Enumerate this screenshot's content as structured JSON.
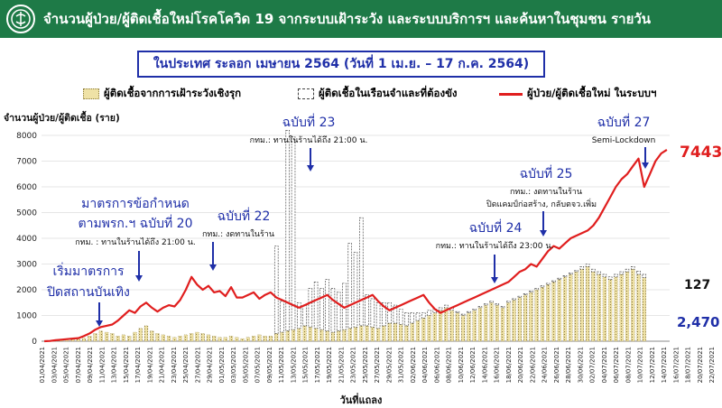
{
  "header": {
    "title": "จำนวนผู้ป่วย/ผู้ติดเชื้อใหม่โรคโควิด 19 จากระบบเฝ้าระวัง และระบบบริการฯ และค้นหาในชุมชน รายวัน"
  },
  "subtitle": "ในประเทศ ระลอก เมษายน 2564   (วันที่ 1 เม.ย. – 17 ก.ค. 2564)",
  "colors": {
    "header_bg": "#1e7a47",
    "line": "#e01e1e",
    "bar_active": "#efe2a6",
    "bar_prison": "#ffffff",
    "annotation": "#1f2fa8"
  },
  "chart_data": {
    "type": "bar",
    "title": "จำนวนผู้ป่วย/ผู้ติดเชื้อใหม่โรคโควิด 19 จากระบบเฝ้าระวัง และระบบบริการฯ และค้นหาในชุมชน รายวัน",
    "ylabel": "จำนวนผู้ป่วย/ผู้ติดเชื้อ (ราย)",
    "xlabel": "วันที่แถลง",
    "ylim": [
      0,
      8000
    ],
    "yticks": [
      0,
      1000,
      2000,
      3000,
      4000,
      5000,
      6000,
      7000,
      8000
    ],
    "x_tick_labels": [
      "01/04/2021",
      "03/04/2021",
      "05/04/2021",
      "07/04/2021",
      "09/04/2021",
      "11/04/2021",
      "13/04/2021",
      "15/04/2021",
      "17/04/2021",
      "19/04/2021",
      "21/04/2021",
      "23/04/2021",
      "25/04/2021",
      "27/04/2021",
      "29/04/2021",
      "01/05/2021",
      "03/05/2021",
      "05/05/2021",
      "07/05/2021",
      "09/05/2021",
      "11/05/2021",
      "13/05/2021",
      "15/05/2021",
      "17/05/2021",
      "19/05/2021",
      "21/05/2021",
      "23/05/2021",
      "25/05/2021",
      "27/05/2021",
      "29/05/2021",
      "31/05/2021",
      "02/06/2021",
      "04/06/2021",
      "06/06/2021",
      "08/06/2021",
      "10/06/2021",
      "12/06/2021",
      "14/06/2021",
      "16/06/2021",
      "18/06/2021",
      "20/06/2021",
      "22/06/2021",
      "24/06/2021",
      "26/06/2021",
      "28/06/2021",
      "30/06/2021",
      "02/07/2021",
      "04/07/2021",
      "06/07/2021",
      "08/07/2021",
      "10/07/2021",
      "12/07/2021",
      "14/07/2021",
      "16/07/2021",
      "18/07/2021",
      "20/07/2021",
      "22/07/2021"
    ],
    "series": [
      {
        "name": "ผู้ติดเชื้อจากการเฝ้าระวังเชิงรุก",
        "kind": "bar",
        "values": [
          0,
          10,
          20,
          30,
          40,
          60,
          80,
          120,
          200,
          300,
          400,
          350,
          300,
          200,
          250,
          200,
          350,
          500,
          600,
          400,
          300,
          250,
          200,
          150,
          200,
          250,
          300,
          350,
          300,
          250,
          200,
          150,
          150,
          200,
          150,
          100,
          150,
          200,
          250,
          200,
          200,
          300,
          350,
          400,
          450,
          500,
          600,
          550,
          500,
          450,
          400,
          350,
          400,
          450,
          500,
          550,
          600,
          600,
          550,
          500,
          600,
          700,
          700,
          650,
          600,
          700,
          800,
          900,
          1000,
          1100,
          1200,
          1300,
          1200,
          1100,
          1000,
          1100,
          1200,
          1300,
          1400,
          1500,
          1400,
          1300,
          1500,
          1600,
          1700,
          1800,
          1900,
          2000,
          2100,
          2200,
          2300,
          2400,
          2500,
          2600,
          2700,
          2800,
          2900,
          2700,
          2600,
          2500,
          2400,
          2500,
          2600,
          2700,
          2800,
          2600,
          2470
        ]
      },
      {
        "name": "ผู้ติดเชื้อในเรือนจำและที่ต้องขัง",
        "kind": "bar",
        "values": [
          0,
          0,
          0,
          0,
          0,
          0,
          0,
          0,
          0,
          0,
          0,
          0,
          0,
          0,
          0,
          0,
          0,
          0,
          0,
          0,
          0,
          0,
          0,
          0,
          0,
          0,
          0,
          0,
          0,
          0,
          0,
          0,
          0,
          0,
          0,
          0,
          0,
          0,
          0,
          0,
          0,
          3400,
          1200,
          7800,
          7500,
          1000,
          800,
          1500,
          1800,
          1600,
          2000,
          1700,
          1500,
          1800,
          3300,
          2900,
          4200,
          1200,
          1100,
          1000,
          900,
          800,
          700,
          600,
          500,
          400,
          300,
          200,
          200,
          150,
          100,
          100,
          100,
          50,
          50,
          50,
          50,
          50,
          50,
          50,
          50,
          50,
          50,
          50,
          50,
          50,
          50,
          50,
          50,
          50,
          50,
          50,
          50,
          50,
          50,
          100,
          100,
          100,
          100,
          100,
          100,
          100,
          100,
          100,
          100,
          127,
          127
        ]
      },
      {
        "name": "ผู้ป่วย/ผู้ติดเชื้อใหม่ ในระบบฯ",
        "kind": "line",
        "values": [
          0,
          10,
          40,
          60,
          80,
          100,
          120,
          200,
          300,
          450,
          550,
          600,
          650,
          800,
          1000,
          1200,
          1100,
          1350,
          1500,
          1300,
          1150,
          1300,
          1400,
          1350,
          1600,
          2000,
          2500,
          2200,
          2000,
          2150,
          1900,
          1950,
          1750,
          2100,
          1700,
          1700,
          1800,
          1900,
          1650,
          1800,
          1900,
          1700,
          1600,
          1500,
          1400,
          1300,
          1400,
          1500,
          1600,
          1700,
          1800,
          1600,
          1450,
          1300,
          1400,
          1500,
          1600,
          1700,
          1800,
          1550,
          1350,
          1200,
          1300,
          1400,
          1500,
          1600,
          1700,
          1800,
          1500,
          1250,
          1100,
          1200,
          1300,
          1400,
          1500,
          1600,
          1700,
          1800,
          1900,
          2000,
          2100,
          2200,
          2300,
          2500,
          2700,
          2800,
          3000,
          2900,
          3200,
          3500,
          3700,
          3600,
          3800,
          4000,
          4100,
          4200,
          4300,
          4500,
          4800,
          5200,
          5600,
          6000,
          6300,
          6500,
          6800,
          7100,
          6000,
          6500,
          7000,
          7300,
          7443
        ]
      }
    ],
    "annotations": [
      {
        "text": "เริ่มมาตรการ",
        "note": ""
      },
      {
        "text": "ปิดสถานบันเทิง",
        "note": ""
      },
      {
        "text": "มาตรการข้อกำหนด",
        "note": ""
      },
      {
        "text": "ตามพรก.ฯ ฉบับที่ 20",
        "note": "กทม. : ทานในร้านได้ถึง 21:00 น."
      },
      {
        "text": "ฉบับที่ 22",
        "note": "กทม.: งดทานในร้าน"
      },
      {
        "text": "ฉบับที่ 23",
        "note": "กทม.: ทานในร้านได้ถึง 21:00 น."
      },
      {
        "text": "ฉบับที่ 24",
        "note": "กทม.: ทานในร้านได้ถึง 23:00 น."
      },
      {
        "text": "ฉบับที่ 25",
        "note": "กทม.: งดทานในร้าน"
      },
      {
        "text": "",
        "note": "ปิดแคมป์ก่อสร้าง, กลับตจว.เพิ่ม"
      },
      {
        "text": "ฉบับที่ 27",
        "note": "Semi-Lockdown"
      }
    ],
    "end_labels": {
      "line": "7443",
      "prison": "127",
      "active": "2,470"
    }
  },
  "legend": {
    "active": "ผู้ติดเชื้อจากการเฝ้าระวังเชิงรุก",
    "prison": "ผู้ติดเชื้อในเรือนจำและที่ต้องขัง",
    "line": "ผู้ป่วย/ผู้ติดเชื้อใหม่ ในระบบฯ"
  }
}
